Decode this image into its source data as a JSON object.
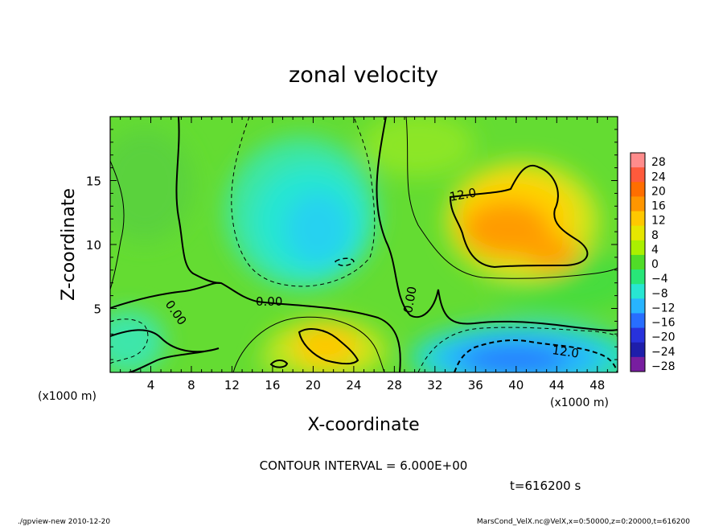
{
  "chart_data": {
    "type": "heatmap",
    "title": "zonal velocity",
    "xlabel": "X-coordinate",
    "ylabel": "Z-coordinate",
    "x_unit_left": "(x1000 m)",
    "x_unit_right": "(x1000 m)",
    "xlim": [
      0,
      50
    ],
    "ylim": [
      0,
      20
    ],
    "x_ticks": [
      4,
      8,
      12,
      16,
      20,
      24,
      28,
      32,
      36,
      40,
      44,
      48
    ],
    "y_ticks": [
      5,
      10,
      15
    ],
    "colorbar_labels": [
      "28",
      "24",
      "20",
      "16",
      "12",
      "8",
      "4",
      "0",
      "−4",
      "−8",
      "−12",
      "−16",
      "−20",
      "−24",
      "−28"
    ],
    "colorbar_colors": [
      "#ff8c8c",
      "#ff5a3c",
      "#ff6e00",
      "#ff9600",
      "#ffc800",
      "#e6e600",
      "#aaf000",
      "#50dc28",
      "#28e678",
      "#28e6d2",
      "#28b4ff",
      "#286eff",
      "#2832dc",
      "#1e1eaa",
      "#781ea0"
    ],
    "contour_labels": [
      "12.0",
      "0.00",
      "0.00",
      "0.00",
      "12.0"
    ],
    "contour_interval_text": "CONTOUR INTERVAL = 6.000E+00",
    "regions": [
      {
        "name": "upper-left negative zone",
        "x": [
          11,
          25
        ],
        "z": [
          8,
          18
        ],
        "value": -9
      },
      {
        "name": "upper-right positive zone",
        "x": [
          34,
          47
        ],
        "z": [
          8,
          17
        ],
        "value": 15
      },
      {
        "name": "lower-right negative zone",
        "x": [
          33,
          50
        ],
        "z": [
          0,
          4
        ],
        "value": -15
      },
      {
        "name": "lower-center positive zone",
        "x": [
          16,
          26
        ],
        "z": [
          0,
          4
        ],
        "value": 12
      }
    ]
  },
  "time_label": "t=616200 s",
  "footer_left": "./gpview-new   2010-12-20",
  "footer_right": "MarsCond_VelX.nc@VelX,x=0:50000,z=0:20000,t=616200"
}
